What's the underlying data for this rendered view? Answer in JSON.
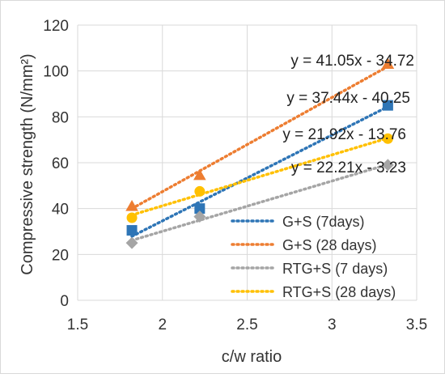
{
  "chart_data": {
    "type": "scatter",
    "title": "",
    "xlabel": "c/w ratio",
    "ylabel": "Compressive strength (N/mm²)",
    "xlim": [
      1.5,
      3.5
    ],
    "ylim": [
      0,
      120
    ],
    "xticks": [
      1.5,
      2,
      2.5,
      3,
      3.5
    ],
    "yticks": [
      0,
      20,
      40,
      60,
      80,
      100,
      120
    ],
    "xtick_labels": [
      "1.5",
      "2",
      "2.5",
      "3",
      "3.5"
    ],
    "ytick_labels": [
      "0",
      "20",
      "40",
      "60",
      "80",
      "100",
      "120"
    ],
    "grid": "both",
    "legend_position": "bottom-right",
    "series": [
      {
        "name": "G+S (7days)",
        "marker": "square",
        "color": "#2E75B6",
        "x": [
          1.82,
          2.22,
          3.33
        ],
        "y": [
          30.5,
          40,
          85
        ],
        "trendline": {
          "slope": 37.44,
          "intercept": -40.25,
          "label": "y = 37.44x - 40.25"
        }
      },
      {
        "name": "G+S (28 days)",
        "marker": "triangle",
        "color": "#ED7D31",
        "x": [
          1.82,
          2.22,
          3.33
        ],
        "y": [
          41,
          54.5,
          103
        ],
        "trendline": {
          "slope": 41.05,
          "intercept": -34.72,
          "label": "y = 41.05x - 34.72"
        }
      },
      {
        "name": "RTG+S (7 days)",
        "marker": "diamond",
        "color": "#A5A5A5",
        "x": [
          1.82,
          2.22,
          3.33
        ],
        "y": [
          25,
          36.5,
          59
        ],
        "trendline": {
          "slope": 21.92,
          "intercept": -13.76,
          "label": "y = 21.92x - 13.76"
        }
      },
      {
        "name": "RTG+S (28 days)",
        "marker": "circle",
        "color": "#FFC000",
        "x": [
          1.82,
          2.22,
          3.33
        ],
        "y": [
          36,
          47.5,
          70.5
        ],
        "trendline": {
          "slope": 22.21,
          "intercept": -3.23,
          "label": "y = 22.21x - 3.23"
        }
      }
    ]
  }
}
